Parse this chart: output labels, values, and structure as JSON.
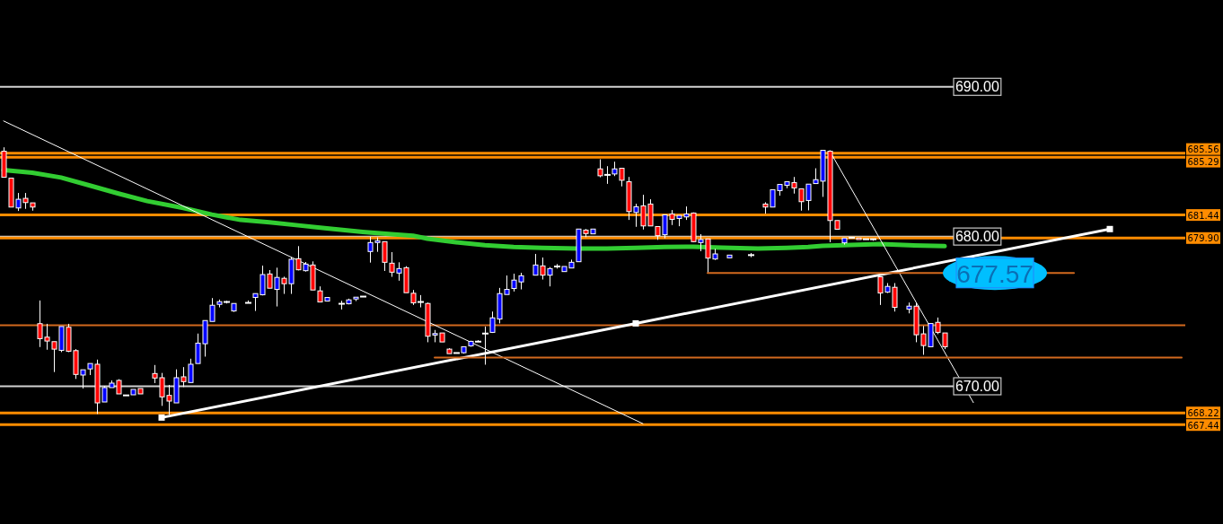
{
  "chart_data": {
    "type": "candlestick",
    "categories": [
      null,
      null,
      null,
      null,
      null,
      null,
      null,
      null,
      null,
      null,
      null,
      null,
      null,
      null,
      null,
      null,
      null,
      null,
      null,
      null,
      null,
      null,
      null,
      null,
      null,
      null,
      null,
      null,
      null,
      null,
      null,
      null,
      null,
      null,
      null,
      null,
      null,
      null,
      null,
      null,
      null,
      null,
      null,
      null,
      null,
      null,
      null,
      null,
      null,
      null,
      null,
      null,
      null,
      null,
      null,
      null,
      null,
      null,
      null,
      null,
      null,
      null,
      null,
      null,
      null,
      null,
      null,
      null,
      null,
      null,
      null,
      null,
      null,
      null,
      null,
      null,
      null,
      null,
      null,
      null,
      null,
      null,
      null,
      null,
      null,
      null,
      null,
      null,
      null,
      null,
      null,
      null,
      null,
      null,
      null,
      null,
      null,
      null,
      null,
      null,
      null,
      null,
      null,
      null,
      null,
      null,
      null,
      null,
      null,
      null,
      null,
      null,
      null,
      null,
      null,
      null,
      null,
      null,
      null,
      null,
      null,
      null,
      null,
      null,
      null,
      null,
      null,
      null,
      null,
      null,
      null,
      null,
      null,
      null,
      null,
      null,
      null,
      null,
      null,
      null,
      null,
      null,
      null,
      null,
      null,
      null,
      null,
      null,
      null,
      null,
      null,
      null,
      null,
      null,
      null,
      null,
      null,
      null,
      null,
      null,
      null,
      null,
      null,
      null,
      null
    ],
    "ohlc": [
      [
        685.7,
        685.96,
        683.96,
        683.96
      ],
      [
        683.9,
        683.9,
        681.97,
        681.97
      ],
      [
        681.91,
        682.91,
        681.71,
        682.49
      ],
      [
        682.55,
        682.91,
        681.85,
        682.27
      ],
      [
        682.25,
        682.25,
        681.73,
        681.97
      ],
      [
        674.18,
        675.73,
        672.62,
        673.18
      ],
      [
        673.28,
        674.17,
        672.44,
        673.02
      ],
      [
        672.98,
        672.98,
        670.95,
        672.48
      ],
      [
        672.4,
        673.99,
        672.28,
        673.99
      ],
      [
        673.94,
        674.17,
        672.28,
        672.34
      ],
      [
        672.38,
        672.48,
        670.49,
        670.79
      ],
      [
        670.75,
        671.1,
        669.85,
        671.1
      ],
      [
        671.16,
        671.52,
        670.75,
        671.52
      ],
      [
        671.47,
        671.78,
        668.15,
        668.89
      ],
      [
        668.95,
        670.01,
        668.95,
        669.91
      ],
      [
        669.91,
        670.39,
        669.91,
        670.21
      ],
      [
        670.39,
        670.47,
        669.49,
        669.49
      ],
      [
        669.39,
        669.39,
        669.39,
        669.39
      ],
      [
        669.43,
        669.79,
        669.43,
        669.79
      ],
      [
        669.85,
        669.85,
        669.49,
        669.49
      ],
      null,
      [
        670.85,
        671.42,
        670.21,
        670.55
      ],
      [
        670.57,
        670.89,
        668.69,
        669.29
      ],
      [
        669.39,
        670.09,
        668.1,
        669.01
      ],
      [
        668.89,
        671.13,
        668.89,
        670.57
      ],
      [
        670.63,
        671.28,
        669.95,
        670.31
      ],
      [
        670.25,
        671.84,
        670.25,
        671.47
      ],
      [
        671.52,
        673.52,
        671.52,
        672.88
      ],
      [
        672.84,
        674.39,
        671.98,
        674.39
      ],
      [
        674.33,
        675.89,
        674.33,
        675.41
      ],
      [
        675.47,
        675.79,
        675.27,
        675.65
      ],
      [
        675.63,
        675.71,
        675.53,
        675.63
      ],
      [
        675.03,
        675.53,
        674.97,
        675.53
      ],
      null,
      [
        675.57,
        675.73,
        675.57,
        675.57
      ],
      [
        675.93,
        676.19,
        675.03,
        676.19
      ],
      [
        676.11,
        678.06,
        676.07,
        677.46
      ],
      [
        677.5,
        677.76,
        676.55,
        676.55
      ],
      [
        676.47,
        677.92,
        675.33,
        677.27
      ],
      [
        677.21,
        677.32,
        676.17,
        676.85
      ],
      [
        676.85,
        678.62,
        676.17,
        678.48
      ],
      [
        678.52,
        679.36,
        677.74,
        677.78
      ],
      [
        677.72,
        678.3,
        677.66,
        678.16
      ],
      [
        678.1,
        678.34,
        676.43,
        676.43
      ],
      [
        676.37,
        676.67,
        675.63,
        675.63
      ],
      [
        675.69,
        675.93,
        675.69,
        675.93
      ],
      null,
      [
        675.51,
        675.71,
        675.13,
        675.51
      ],
      [
        675.51,
        675.85,
        675.47,
        675.77
      ],
      [
        675.83,
        675.95,
        675.69,
        675.95
      ],
      [
        675.99,
        675.99,
        675.99,
        675.99
      ],
      [
        679.0,
        679.98,
        678.26,
        679.6
      ],
      [
        679.6,
        679.94,
        678.98,
        679.72
      ],
      [
        679.66,
        679.66,
        677.7,
        678.28
      ],
      [
        678.22,
        678.96,
        677.31,
        677.62
      ],
      [
        677.56,
        678.28,
        677.05,
        677.86
      ],
      [
        677.92,
        678.02,
        676.25,
        676.25
      ],
      [
        676.21,
        676.43,
        675.43,
        675.57
      ],
      [
        675.63,
        676.09,
        675.27,
        675.63
      ],
      [
        675.53,
        675.59,
        672.94,
        673.34
      ],
      [
        673.42,
        673.76,
        672.94,
        673.52
      ],
      [
        673.56,
        673.56,
        672.96,
        672.96
      ],
      [
        672.48,
        672.54,
        672.18,
        672.18
      ],
      [
        672.22,
        672.22,
        672.22,
        672.22
      ],
      [
        672.24,
        672.64,
        672.18,
        672.64
      ],
      [
        672.7,
        673.04,
        672.64,
        673.0
      ],
      [
        672.98,
        673.08,
        672.98,
        672.98
      ],
      [
        673.52,
        673.99,
        671.44,
        673.52
      ],
      [
        673.6,
        674.99,
        673.56,
        674.57
      ],
      [
        674.49,
        676.57,
        674.2,
        676.19
      ],
      [
        676.13,
        677.4,
        676.13,
        676.47
      ],
      [
        676.53,
        677.52,
        676.33,
        677.09
      ],
      [
        676.97,
        677.58,
        676.47,
        677.38
      ],
      null,
      [
        677.42,
        678.84,
        677.42,
        678.1
      ],
      [
        678.04,
        678.6,
        677.13,
        677.42
      ],
      [
        677.42,
        677.96,
        676.67,
        677.86
      ],
      [
        678.0,
        678.16,
        677.86,
        678.0
      ],
      [
        677.66,
        678.0,
        677.66,
        678.0
      ],
      [
        677.9,
        678.46,
        677.9,
        678.28
      ],
      [
        678.32,
        680.5,
        678.32,
        680.5
      ],
      [
        680.43,
        680.5,
        679.96,
        680.2
      ],
      [
        680.18,
        680.5,
        680.18,
        680.5
      ],
      [
        684.52,
        685.16,
        683.96,
        684.06
      ],
      [
        684.12,
        684.7,
        683.52,
        684.12
      ],
      [
        684.18,
        685.0,
        684.04,
        684.52
      ],
      [
        684.56,
        684.56,
        683.35,
        683.76
      ],
      [
        683.66,
        683.98,
        681.11,
        681.67
      ],
      [
        681.61,
        682.19,
        680.65,
        681.99
      ],
      [
        682.05,
        682.79,
        680.47,
        680.71
      ],
      [
        682.17,
        682.49,
        680.71,
        680.71
      ],
      [
        680.67,
        680.67,
        679.78,
        680.06
      ],
      [
        680.12,
        681.45,
        679.88,
        681.45
      ],
      [
        681.51,
        681.77,
        680.77,
        681.15
      ],
      [
        681.21,
        681.41,
        680.69,
        681.41
      ],
      [
        681.31,
        682.01,
        681.11,
        681.51
      ],
      [
        681.57,
        681.61,
        679.62,
        679.66
      ],
      [
        679.6,
        680.16,
        679.02,
        679.8
      ],
      [
        679.84,
        679.84,
        677.62,
        678.56
      ],
      [
        678.5,
        679.18,
        678.44,
        678.84
      ],
      null,
      [
        678.58,
        678.76,
        678.58,
        678.76
      ],
      null,
      null,
      [
        678.76,
        678.9,
        678.62,
        678.76
      ],
      null,
      [
        682.17,
        682.29,
        681.53,
        681.97
      ],
      [
        681.97,
        683.13,
        681.97,
        683.13
      ],
      [
        683.07,
        683.48,
        682.73,
        683.48
      ],
      [
        683.42,
        683.66,
        683.23,
        683.66
      ],
      [
        683.6,
        683.98,
        682.87,
        683.25
      ],
      [
        683.19,
        683.19,
        681.73,
        682.33
      ],
      [
        682.41,
        683.5,
        681.75,
        683.5
      ],
      [
        683.54,
        684.56,
        683.54,
        683.8
      ],
      [
        683.7,
        685.76,
        682.65,
        685.76
      ],
      [
        685.7,
        685.76,
        679.62,
        681.07
      ],
      [
        681.07,
        681.07,
        680.49,
        680.49
      ],
      [
        679.58,
        679.9,
        679.46,
        679.9
      ],
      [
        679.92,
        679.92,
        679.92,
        679.92
      ],
      [
        679.9,
        679.9,
        679.8,
        679.8
      ],
      [
        679.82,
        679.82,
        679.82,
        679.82
      ],
      [
        679.82,
        679.82,
        679.72,
        679.82
      ],
      [
        677.31,
        677.31,
        675.43,
        676.23
      ],
      [
        676.29,
        676.89,
        676.23,
        676.67
      ],
      [
        676.61,
        676.89,
        674.99,
        675.27
      ],
      null,
      [
        675.15,
        675.59,
        674.87,
        675.35
      ],
      [
        675.35,
        675.59,
        672.94,
        673.44
      ],
      [
        673.5,
        674.03,
        672.1,
        672.72
      ],
      [
        672.64,
        674.19,
        672.64,
        674.19
      ],
      [
        674.27,
        674.59,
        673.48,
        673.6
      ],
      [
        673.56,
        673.56,
        672.48,
        672.64
      ],
      null,
      null,
      null,
      null,
      null,
      null,
      null,
      null,
      null,
      null,
      null,
      null,
      null,
      null,
      null,
      null,
      null,
      null,
      null,
      null,
      null,
      null,
      null,
      null,
      null,
      null,
      null,
      null,
      null,
      null,
      null,
      null,
      null
    ],
    "colors": [
      "#ff0000",
      "#ff0000",
      "#0000ff",
      "#ff0000",
      "#ff0000",
      "#ff0000",
      "#ff0000",
      "#ff0000",
      "#0000ff",
      "#ff0000",
      "#ff0000",
      "#0000ff",
      "#0000ff",
      "#ff0000",
      "#0000ff",
      "#0000ff",
      "#ff0000",
      "#ffffff",
      "#0000ff",
      "#ff0000",
      null,
      "#ff0000",
      "#ff0000",
      "#ff0000",
      "#0000ff",
      "#ff0000",
      "#0000ff",
      "#0000ff",
      "#0000ff",
      "#0000ff",
      "#0000ff",
      "#ffffff",
      "#0000ff",
      null,
      "#ffffff",
      "#0000ff",
      "#0000ff",
      "#ff0000",
      "#0000ff",
      "#ff0000",
      "#0000ff",
      "#ff0000",
      "#0000ff",
      "#ff0000",
      "#ff0000",
      "#0000ff",
      null,
      "#ffffff",
      "#0000ff",
      "#0000ff",
      "#ffffff",
      "#0000ff",
      "#0000ff",
      "#ff0000",
      "#ff0000",
      "#0000ff",
      "#ff0000",
      "#ff0000",
      "#ffffff",
      "#ff0000",
      "#0000ff",
      "#ff0000",
      "#ff0000",
      "#ffffff",
      "#0000ff",
      "#0000ff",
      "#ffffff",
      "#ffffff",
      "#0000ff",
      "#0000ff",
      "#0000ff",
      "#0000ff",
      "#0000ff",
      null,
      "#0000ff",
      "#ff0000",
      "#0000ff",
      "#ffffff",
      "#0000ff",
      "#0000ff",
      "#0000ff",
      "#ff0000",
      "#0000ff",
      "#ff0000",
      "#ffffff",
      "#0000ff",
      "#ff0000",
      "#ff0000",
      "#0000ff",
      "#ff0000",
      "#ff0000",
      "#ff0000",
      "#0000ff",
      "#ff0000",
      "#0000ff",
      "#0000ff",
      "#ff0000",
      "#0000ff",
      "#ff0000",
      "#0000ff",
      null,
      "#0000ff",
      null,
      null,
      "#ffffff",
      null,
      "#ff0000",
      "#0000ff",
      "#0000ff",
      "#0000ff",
      "#ff0000",
      "#ff0000",
      "#0000ff",
      "#0000ff",
      "#0000ff",
      "#ff0000",
      "#ff0000",
      "#0000ff",
      "#ffffff",
      "#ff0000",
      "#ffffff",
      "#ffffff",
      "#ff0000",
      "#0000ff",
      "#ff0000",
      null,
      "#0000ff",
      "#ff0000",
      "#ff0000",
      "#0000ff",
      "#ff0000",
      "#ff0000",
      null,
      null,
      null,
      null,
      null,
      null,
      null,
      null,
      null,
      null,
      null,
      null,
      null,
      null,
      null,
      null,
      null,
      null,
      null,
      null,
      null,
      null,
      null,
      null,
      null,
      null,
      null,
      null,
      null,
      null,
      null,
      null,
      null
    ],
    "ylim": [
      660.8,
      695.8
    ],
    "yticks": [
      {
        "value": 670,
        "label": "670.00"
      },
      {
        "value": 680,
        "label": "680.00"
      },
      {
        "value": 690,
        "label": "690.00"
      }
    ],
    "grid": "y",
    "tick_labels": "y",
    "series": [
      {
        "type": "line",
        "color": "#32cd32",
        "values": [
          684.44,
          null,
          null,
          null,
          684.26,
          null,
          null,
          null,
          683.94,
          null,
          null,
          null,
          683.41,
          null,
          null,
          null,
          682.87,
          null,
          null,
          null,
          682.37,
          null,
          null,
          null,
          null,
          681.91,
          null,
          null,
          null,
          681.47,
          null,
          null,
          null,
          681.11,
          null,
          null,
          null,
          680.95,
          null,
          null,
          null,
          680.75,
          null,
          null,
          null,
          680.55,
          null,
          null,
          null,
          null,
          680.31,
          null,
          null,
          null,
          680.16,
          null,
          null,
          680.06,
          null,
          679.86,
          null,
          null,
          null,
          679.62,
          null,
          null,
          null,
          679.42,
          null,
          null,
          null,
          679.3,
          null,
          null,
          null,
          679.24,
          null,
          null,
          null,
          null,
          679.2,
          null,
          null,
          null,
          679.2,
          null,
          null,
          null,
          679.24,
          null,
          null,
          null,
          679.3,
          null,
          null,
          null,
          679.32,
          null,
          null,
          null,
          679.26,
          null,
          null,
          null,
          null,
          679.2,
          null,
          null,
          null,
          679.24,
          null,
          null,
          679.3,
          null,
          679.38,
          null,
          null,
          null,
          679.44,
          null,
          null,
          null,
          679.5,
          null,
          null,
          null,
          679.42,
          null,
          null,
          null,
          null,
          679.36,
          null,
          null,
          null,
          null,
          null,
          null,
          null,
          null,
          null,
          null,
          null,
          null,
          null,
          null,
          null,
          null,
          null,
          null,
          null,
          null,
          null,
          null,
          null,
          null,
          null,
          null,
          null,
          null,
          null,
          null,
          null,
          null,
          null
        ]
      },
      {
        "type": "line",
        "color": "#ffffff",
        "values": [
          687.72,
          null,
          null,
          null,
          null,
          null,
          null,
          null,
          null,
          null,
          null,
          null,
          null,
          null,
          null,
          null,
          null,
          null,
          null,
          null,
          null,
          null,
          null,
          null,
          null,
          null,
          null,
          null,
          null,
          null,
          null,
          null,
          null,
          null,
          null,
          null,
          null,
          null,
          null,
          null,
          null,
          null,
          null,
          null,
          null,
          null,
          null,
          null,
          null,
          null,
          null,
          null,
          null,
          null,
          null,
          null,
          null,
          null,
          null,
          null,
          null,
          null,
          null,
          null,
          null,
          null,
          null,
          null,
          null,
          null,
          null,
          null,
          null,
          null,
          null,
          null,
          null,
          null,
          null,
          null,
          null,
          null,
          null,
          null,
          null,
          null,
          null,
          null,
          null,
          667.5,
          null,
          null,
          null,
          null,
          null,
          null,
          null,
          null,
          null,
          null,
          null,
          null,
          null,
          null,
          null,
          null,
          null,
          null,
          null,
          null,
          null,
          null,
          null,
          null,
          null,
          null,
          null,
          null,
          null,
          null,
          null,
          null,
          null,
          null,
          null,
          null,
          null,
          null,
          null,
          null,
          null,
          null,
          null,
          null,
          null,
          null,
          null,
          null,
          null,
          null,
          null,
          null,
          null,
          null,
          null,
          null,
          null,
          null,
          null,
          null,
          null,
          null,
          null,
          null,
          null,
          null,
          null,
          null,
          null,
          null,
          null,
          null,
          null,
          null,
          null
        ]
      },
      {
        "type": "line",
        "color": "#ffffff",
        "values": [
          null,
          null,
          null,
          null,
          null,
          null,
          null,
          null,
          null,
          null,
          null,
          null,
          null,
          null,
          null,
          null,
          null,
          null,
          null,
          null,
          null,
          null,
          null,
          null,
          null,
          null,
          null,
          null,
          null,
          null,
          null,
          null,
          null,
          null,
          null,
          null,
          null,
          null,
          null,
          null,
          null,
          null,
          null,
          null,
          null,
          null,
          null,
          null,
          null,
          null,
          null,
          null,
          null,
          null,
          null,
          null,
          null,
          null,
          null,
          null,
          null,
          null,
          null,
          null,
          null,
          null,
          null,
          null,
          null,
          null,
          null,
          null,
          null,
          null,
          null,
          null,
          null,
          null,
          null,
          null,
          null,
          null,
          null,
          null,
          null,
          null,
          null,
          null,
          null,
          null,
          null,
          null,
          null,
          null,
          null,
          null,
          null,
          null,
          null,
          null,
          null,
          null,
          null,
          null,
          null,
          null,
          null,
          null,
          null,
          null,
          null,
          null,
          null,
          null,
          null,
          685.72,
          null,
          null,
          null,
          null,
          null,
          null,
          null,
          null,
          null,
          null,
          null,
          null,
          null,
          null,
          null,
          null,
          null,
          null,
          null,
          668.91,
          null,
          null,
          null,
          null,
          null,
          null,
          null,
          null,
          null,
          null,
          null,
          null,
          null,
          null,
          null,
          null,
          null,
          null,
          null,
          null,
          null,
          null,
          null,
          null,
          null,
          null,
          null,
          null,
          null
        ]
      },
      {
        "type": "line",
        "color": "#ffffff",
        "marker": "square",
        "values": [
          null,
          null,
          null,
          null,
          null,
          null,
          null,
          null,
          null,
          null,
          null,
          null,
          null,
          null,
          null,
          null,
          null,
          null,
          null,
          null,
          null,
          null,
          667.91,
          null,
          null,
          null,
          null,
          null,
          null,
          null,
          null,
          null,
          null,
          null,
          null,
          null,
          null,
          null,
          null,
          null,
          null,
          null,
          null,
          null,
          null,
          null,
          null,
          null,
          null,
          null,
          null,
          null,
          null,
          null,
          null,
          null,
          null,
          null,
          null,
          null,
          null,
          null,
          null,
          null,
          null,
          null,
          null,
          null,
          null,
          null,
          null,
          null,
          null,
          null,
          null,
          null,
          null,
          null,
          null,
          null,
          null,
          null,
          null,
          null,
          null,
          null,
          null,
          null,
          674.2,
          null,
          null,
          null,
          null,
          null,
          null,
          null,
          null,
          null,
          null,
          null,
          null,
          null,
          null,
          null,
          null,
          null,
          null,
          null,
          null,
          null,
          null,
          null,
          null,
          null,
          null,
          null,
          null,
          null,
          null,
          null,
          null,
          null,
          null,
          null,
          null,
          null,
          null,
          null,
          null,
          null,
          null,
          null,
          null,
          null,
          null,
          null,
          null,
          null,
          null,
          null,
          null,
          null,
          null,
          null,
          null,
          null,
          null,
          null,
          null,
          null,
          null,
          null,
          null,
          null,
          680.5,
          null,
          null,
          null,
          null,
          null,
          null,
          null,
          null,
          null,
          null
        ]
      },
      {
        "type": "line",
        "color": "#d2691e",
        "values": [
          null,
          null,
          null,
          null,
          null,
          null,
          null,
          null,
          null,
          null,
          null,
          null,
          null,
          null,
          null,
          null,
          null,
          null,
          null,
          null,
          null,
          null,
          null,
          null,
          null,
          null,
          null,
          null,
          null,
          null,
          null,
          null,
          null,
          null,
          null,
          null,
          null,
          null,
          null,
          null,
          null,
          null,
          null,
          null,
          null,
          null,
          null,
          null,
          null,
          null,
          null,
          null,
          null,
          null,
          null,
          null,
          null,
          null,
          null,
          null,
          671.92,
          null,
          null,
          null,
          null,
          null,
          null,
          null,
          null,
          null,
          null,
          null,
          null,
          null,
          null,
          null,
          null,
          null,
          null,
          null,
          null,
          null,
          null,
          null,
          null,
          null,
          null,
          null,
          null,
          null,
          null,
          null,
          null,
          null,
          null,
          null,
          null,
          null,
          null,
          null,
          null,
          null,
          null,
          null,
          null,
          null,
          null,
          null,
          null,
          null,
          null,
          null,
          null,
          null,
          null,
          null,
          null,
          null,
          null,
          null,
          null,
          null,
          null,
          null,
          null,
          null,
          null,
          null,
          null,
          null,
          null,
          null,
          null,
          null,
          null,
          null,
          null,
          null,
          null,
          null,
          null,
          null,
          null,
          null,
          null,
          null,
          null,
          null,
          null,
          null,
          null,
          null,
          null,
          null,
          null,
          null,
          null,
          null,
          null,
          null,
          null,
          null,
          null,
          null,
          671.92
        ]
      },
      {
        "type": "line",
        "color": "#d2691e",
        "values": [
          null,
          null,
          null,
          null,
          null,
          null,
          null,
          null,
          null,
          null,
          null,
          null,
          null,
          null,
          null,
          null,
          null,
          null,
          null,
          null,
          null,
          null,
          null,
          null,
          null,
          null,
          null,
          null,
          null,
          null,
          null,
          null,
          null,
          null,
          null,
          null,
          null,
          null,
          null,
          null,
          null,
          null,
          null,
          null,
          null,
          null,
          null,
          null,
          null,
          null,
          null,
          null,
          null,
          null,
          null,
          null,
          null,
          null,
          null,
          null,
          null,
          null,
          null,
          null,
          null,
          null,
          null,
          null,
          null,
          null,
          null,
          null,
          null,
          null,
          null,
          null,
          null,
          null,
          null,
          null,
          null,
          null,
          null,
          null,
          null,
          null,
          null,
          null,
          null,
          null,
          null,
          null,
          null,
          null,
          null,
          null,
          null,
          null,
          677.57,
          null,
          null,
          null,
          null,
          null,
          null,
          null,
          null,
          null,
          null,
          null,
          null,
          null,
          null,
          null,
          null,
          null,
          null,
          null,
          null,
          null,
          null,
          null,
          null,
          null,
          null,
          null,
          null,
          null,
          null,
          null,
          null,
          null,
          null,
          null,
          null,
          null,
          null,
          null,
          null,
          null,
          null,
          null,
          null,
          null,
          null,
          null,
          null,
          null,
          null,
          677.57,
          null,
          null,
          null,
          null,
          null,
          null,
          null,
          null,
          null,
          null,
          null,
          null,
          null,
          null,
          null
        ]
      }
    ],
    "ref_lines": [
      {
        "axis": "y",
        "value": 685.56,
        "label": "685.56",
        "color": "#ff8c00"
      },
      {
        "axis": "y",
        "value": 685.29,
        "label": "685.29",
        "color": "#ff8c00"
      },
      {
        "axis": "y",
        "value": 681.44,
        "label": "681.44",
        "color": "#ff8c00"
      },
      {
        "axis": "y",
        "value": 679.9,
        "label": "679.90",
        "color": "#ff8c00"
      },
      {
        "axis": "y",
        "value": 674.07,
        "color": "#d2691e"
      },
      {
        "axis": "y",
        "value": 668.22,
        "label": "668.22",
        "color": "#ff8c00"
      },
      {
        "axis": "y",
        "value": 667.44,
        "label": "667.44",
        "color": "#ff8c00"
      }
    ],
    "annotations": [
      {
        "text": "677.57",
        "y": 677.57
      }
    ]
  }
}
